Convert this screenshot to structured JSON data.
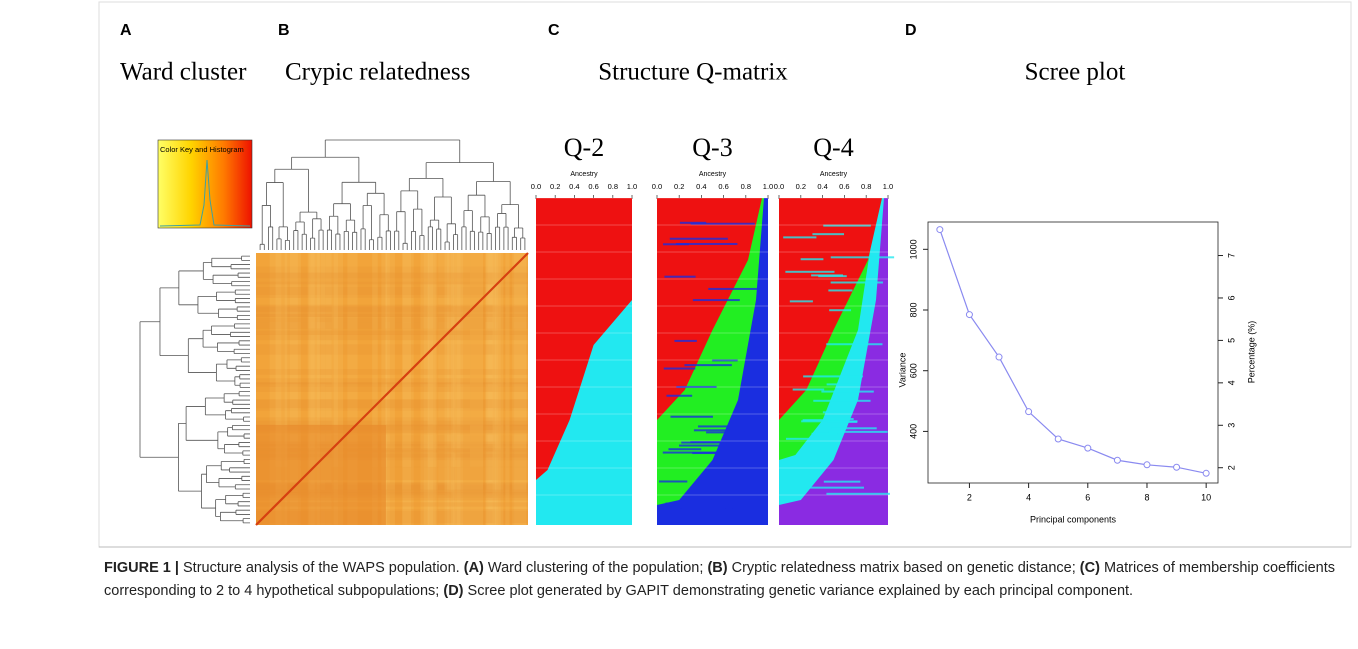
{
  "panels": [
    {
      "label": "A",
      "title": "Ward cluster"
    },
    {
      "label": "B",
      "title": "Crypic relatedness"
    },
    {
      "label": "C",
      "title": "Structure Q-matrix"
    },
    {
      "label": "D",
      "title": "Scree plot"
    }
  ],
  "color_key": {
    "title": "Color Key and Histogram"
  },
  "structure": [
    {
      "title": "Q-2",
      "axis_label": "Ancestry",
      "xlim": [
        0,
        1
      ],
      "xticks": [
        {
          "value": 0,
          "label": "0.0"
        },
        0.2,
        0.4,
        0.6,
        0.8,
        {
          "value": 1,
          "label": "1.0"
        }
      ]
    },
    {
      "title": "Q-3",
      "axis_label": "Ancestry",
      "xlim": [
        0,
        1
      ],
      "xticks": [
        {
          "value": 0,
          "label": "0.0"
        },
        0.2,
        0.4,
        0.6,
        0.8,
        {
          "value": 1,
          "label": "1.0"
        }
      ]
    },
    {
      "title": "Q-4",
      "axis_label": "Ancestry",
      "xlim": [
        0,
        1
      ],
      "xticks": [
        {
          "value": 0,
          "label": "0.0"
        },
        0.2,
        0.4,
        0.6,
        0.8,
        {
          "value": 1,
          "label": "1.0"
        }
      ]
    }
  ],
  "chart_data": {
    "type": "line",
    "x_label": "Principal components",
    "y_label": "Variance",
    "y2_label": "Percentage (%)",
    "x": [
      1,
      2,
      3,
      4,
      5,
      6,
      7,
      8,
      9,
      10
    ],
    "series": [
      {
        "name": "Variance",
        "color": "#8a8af0",
        "values": [
          1065,
          785,
          645,
          465,
          375,
          345,
          305,
          290,
          282,
          262
        ]
      }
    ],
    "xlim": [
      0.6,
      10.4
    ],
    "xticks": [
      2,
      4,
      6,
      8,
      10
    ],
    "ylim": [
      230,
      1090
    ],
    "yticks": [
      400,
      600,
      800,
      1000
    ],
    "y2lim": [
      1.64,
      7.79
    ],
    "y2ticks": [
      2,
      3,
      4,
      5,
      6,
      7
    ]
  },
  "caption": [
    "FIGURE 1 |",
    " Structure analysis of the WAPS population. ",
    "(A)",
    " Ward clustering of the population; ",
    "(B)",
    " Cryptic relatedness matrix based on genetic distance; ",
    "(C)",
    " Matrices of membership coefficients corresponding to 2 to 4 hypothetical subpopulations; ",
    "(D)",
    " Scree plot generated by GAPIT demonstrating genetic variance explained by each principal component."
  ]
}
